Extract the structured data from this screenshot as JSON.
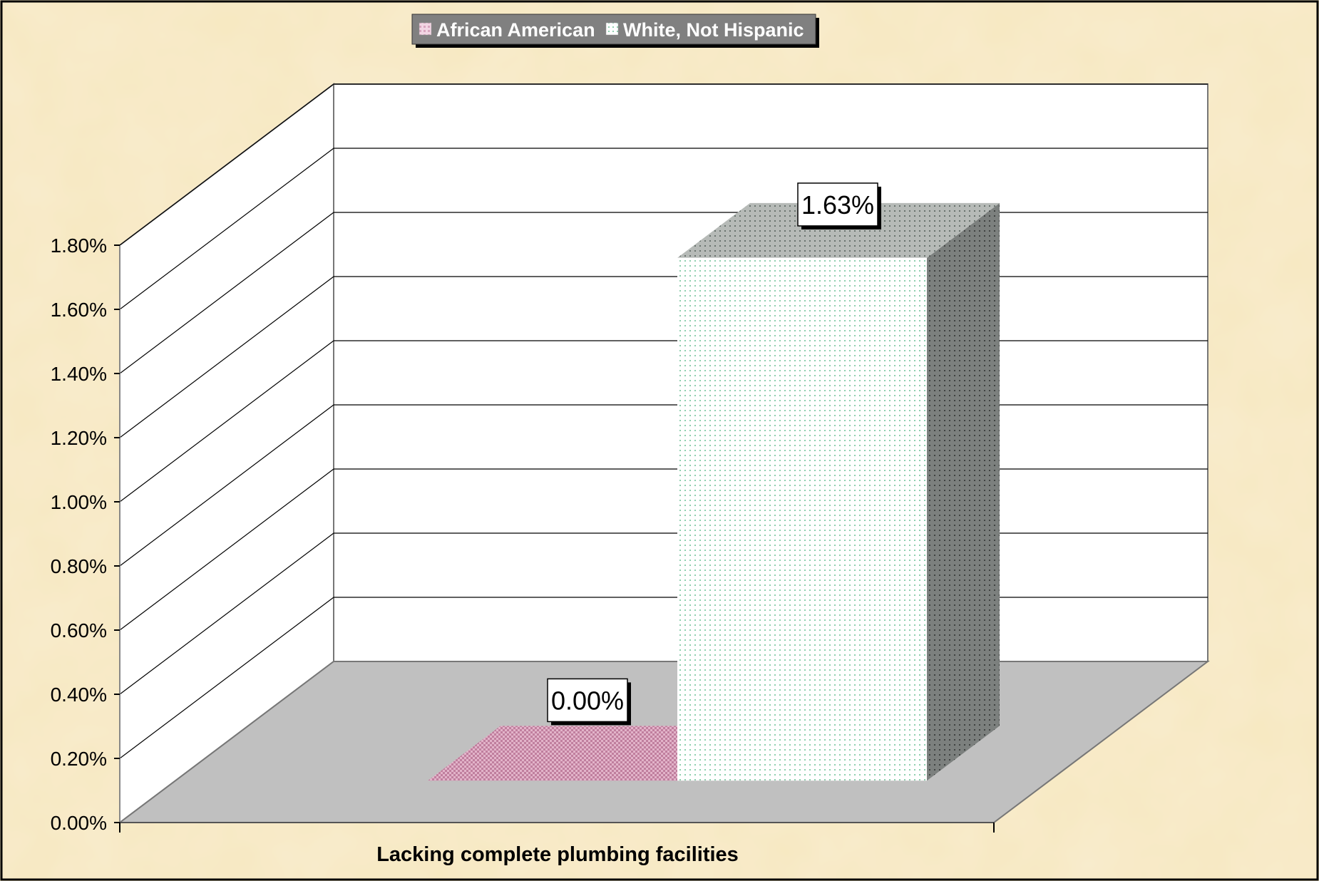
{
  "colors": {
    "background": "#f7e8c0",
    "wall": "#ffffff",
    "floor": "#c0c0c0",
    "african_american": "#d8a0bc",
    "white_not_hispanic": "#f4fbf6",
    "white_not_hispanic_dots": "#5cb88a",
    "legend_bg": "#808080"
  },
  "chart_data": {
    "type": "bar",
    "categories": [
      "Lacking complete plumbing facilities"
    ],
    "series": [
      {
        "name": "African American",
        "values": [
          0.0
        ]
      },
      {
        "name": "White, Not Hispanic",
        "values": [
          1.63
        ]
      }
    ],
    "data_labels": [
      "0.00%",
      "1.63%"
    ],
    "y_tick_labels": [
      "0.00%",
      "0.20%",
      "0.40%",
      "0.60%",
      "0.80%",
      "1.00%",
      "1.20%",
      "1.40%",
      "1.60%",
      "1.80%"
    ],
    "ylim": [
      0,
      1.8
    ],
    "y_unit": "%",
    "grid": true,
    "legend_position": "top-center",
    "style": "3d-column"
  }
}
